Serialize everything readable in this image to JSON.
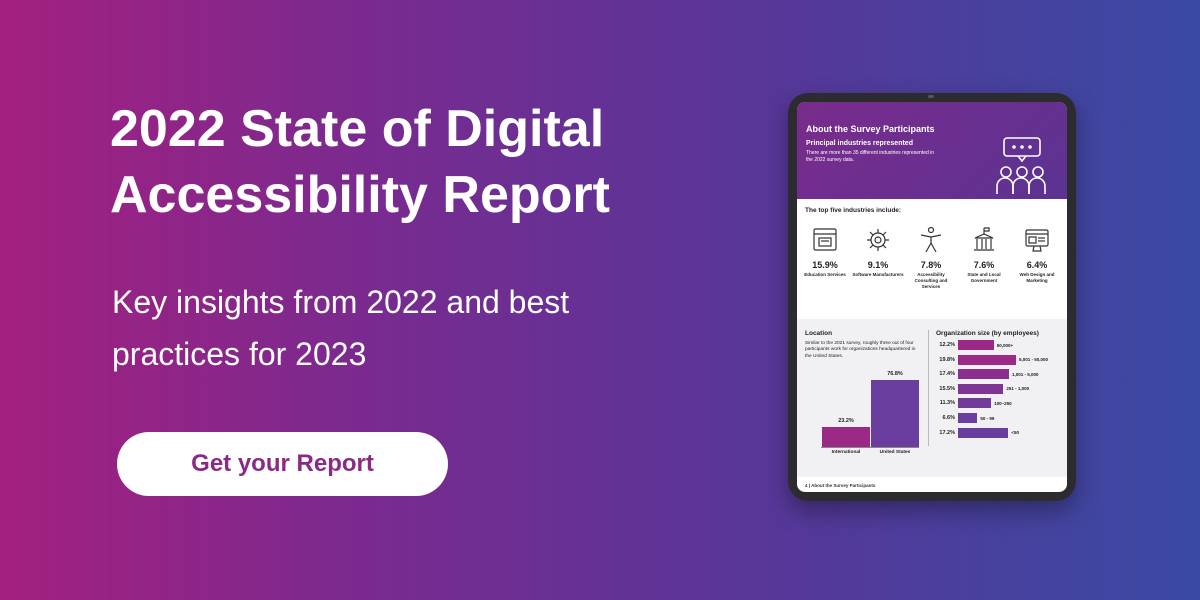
{
  "hero": {
    "title": "2022 State of Digital Accessibility Report",
    "subtitle": "Key insights from 2022 and best practices for 2023",
    "cta_label": "Get your Report"
  },
  "report": {
    "header_title": "About the Survey Participants",
    "header_subtitle": "Principal industries represented",
    "header_desc": "There are more than 35 different industries represented in the 2022 survey data.",
    "top_five_heading": "The top five industries include:",
    "industries": [
      {
        "value": "15.9%",
        "label": "Education Services",
        "icon": "browser-icon"
      },
      {
        "value": "9.1%",
        "label": "Software Manufacturers",
        "icon": "gear-icon"
      },
      {
        "value": "7.8%",
        "label": "Accessibility Consulting and Services",
        "icon": "accessibility-person-icon"
      },
      {
        "value": "7.6%",
        "label": "State and Local Government",
        "icon": "government-building-icon"
      },
      {
        "value": "6.4%",
        "label": "Web Design and Marketing",
        "icon": "web-design-icon"
      }
    ],
    "location": {
      "title": "Location",
      "desc": "Similar to the 2021 survey, roughly three out of four participants work for organizations headquartered in the United States."
    },
    "org_size_title": "Organization size (by employees)",
    "footer": "4  |  About the Survey Participants"
  },
  "chart_data": [
    {
      "type": "bar",
      "title": "Location",
      "categories": [
        "International",
        "United States"
      ],
      "values": [
        23.2,
        76.8
      ],
      "value_labels": [
        "23.2%",
        "76.8%"
      ],
      "colors": [
        "#9b2a87",
        "#6a3e9e"
      ]
    },
    {
      "type": "bar",
      "orientation": "horizontal",
      "title": "Organization size (by employees)",
      "categories": [
        "50,000+",
        "5,001 - 50,000",
        "1,001 - 5,000",
        "251 - 1,000",
        "100–250",
        "50 - 99",
        "<50"
      ],
      "values": [
        12.2,
        19.8,
        17.4,
        15.5,
        11.3,
        6.6,
        17.2
      ],
      "value_labels": [
        "12.2%",
        "19.8%",
        "17.4%",
        "15.5%",
        "11.3%",
        "6.6%",
        "17.2%"
      ],
      "colors": [
        "#9b2a87",
        "#9b2a87",
        "#8a2f8f",
        "#7c3595",
        "#723a99",
        "#6a3e9e",
        "#6a3e9e"
      ]
    }
  ],
  "colors": {
    "cta_text": "#8b2a86",
    "bg_left": "#a3207f",
    "bg_right": "#3a4aa3"
  }
}
